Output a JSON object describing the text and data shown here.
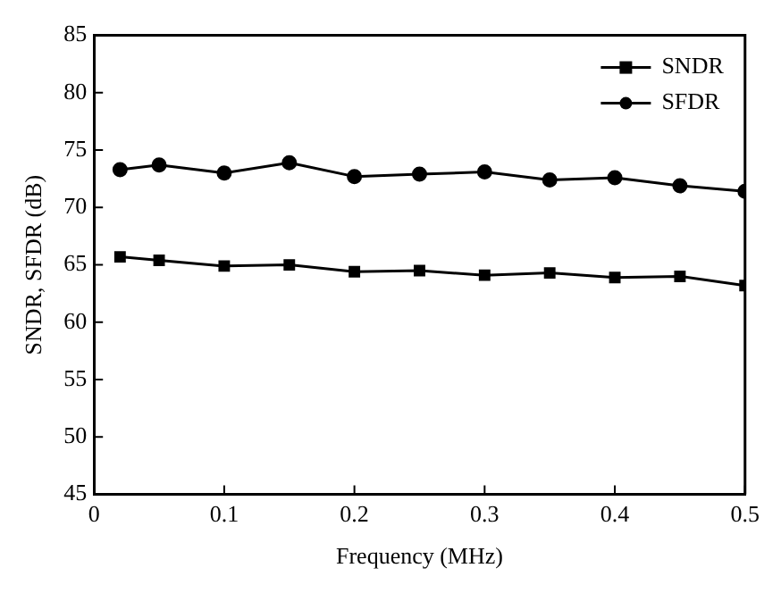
{
  "chart_data": {
    "type": "line",
    "xlabel": "Frequency (MHz)",
    "ylabel": "SNDR, SFDR (dB)",
    "x": [
      0.02,
      0.05,
      0.1,
      0.15,
      0.2,
      0.25,
      0.3,
      0.35,
      0.4,
      0.45,
      0.5
    ],
    "series": [
      {
        "name": "SNDR",
        "color": "#000000",
        "marker": "square",
        "values": [
          65.7,
          65.4,
          64.9,
          65.0,
          64.4,
          64.5,
          64.1,
          64.3,
          63.9,
          64.0,
          63.2
        ]
      },
      {
        "name": "SFDR",
        "color": "#000000",
        "marker": "circle",
        "values": [
          73.3,
          73.7,
          73.0,
          73.9,
          72.7,
          72.9,
          73.1,
          72.4,
          72.6,
          71.9,
          71.4
        ]
      }
    ],
    "xlim": [
      0,
      0.5
    ],
    "xticks": [
      0,
      0.1,
      0.2,
      0.3,
      0.4,
      0.5
    ],
    "ylim": [
      45,
      85
    ],
    "yticks": [
      45,
      50,
      55,
      60,
      65,
      70,
      75,
      80,
      85
    ],
    "grid": false,
    "legend": "top right",
    "line_style": "solid"
  }
}
